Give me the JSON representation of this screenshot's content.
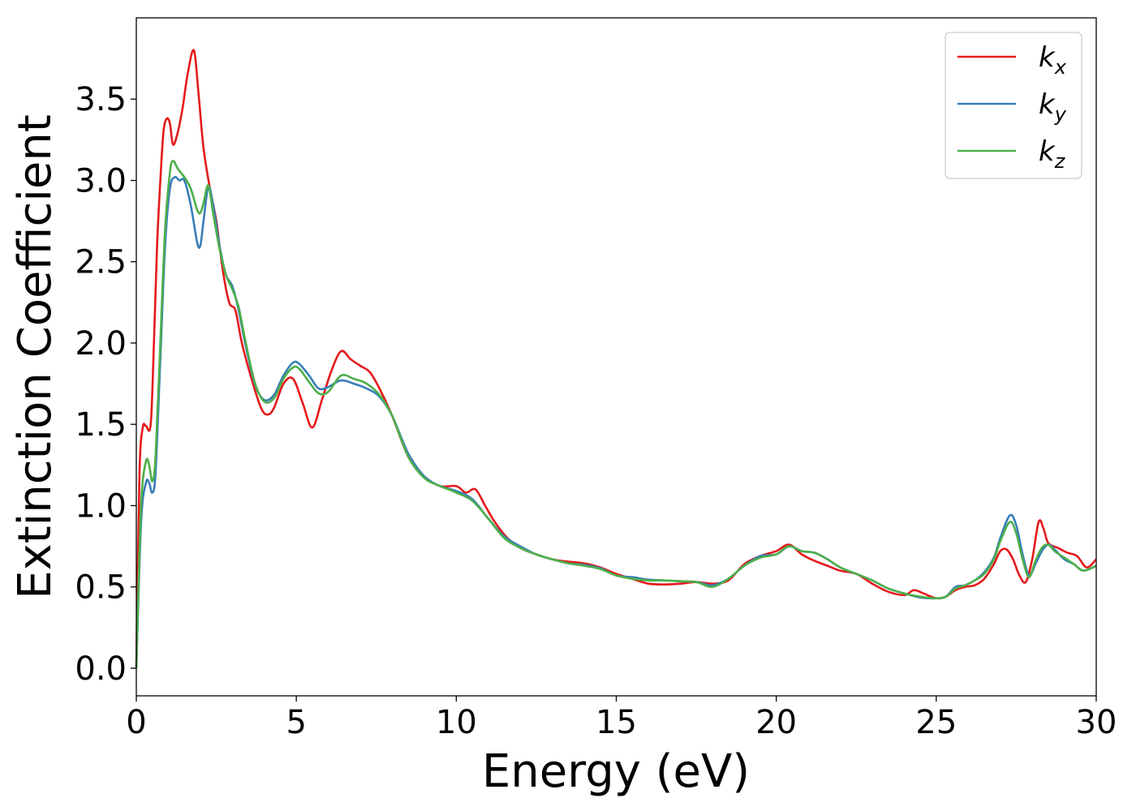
{
  "chart_data": {
    "type": "line",
    "title": "",
    "xlabel": "Energy (eV)",
    "ylabel": "Extinction Coefficient",
    "xlim": [
      0,
      30
    ],
    "ylim": [
      -0.17,
      4.0
    ],
    "xticks": [
      0,
      5,
      10,
      15,
      20,
      25,
      30
    ],
    "xtick_labels": [
      "0",
      "5",
      "10",
      "15",
      "20",
      "25",
      "30"
    ],
    "yticks": [
      0.0,
      0.5,
      1.0,
      1.5,
      2.0,
      2.5,
      3.0,
      3.5
    ],
    "ytick_labels": [
      "0.0",
      "0.5",
      "1.0",
      "1.5",
      "2.0",
      "2.5",
      "3.0",
      "3.5"
    ],
    "grid": false,
    "legend_position": "top-right",
    "series": [
      {
        "name": "k_x",
        "label_base": "k",
        "label_sub": "x",
        "color": "#e41a1c",
        "x": [
          0,
          0.1,
          0.2,
          0.3,
          0.45,
          0.55,
          0.65,
          0.75,
          0.85,
          0.95,
          1.05,
          1.15,
          1.3,
          1.45,
          1.6,
          1.8,
          1.95,
          2.1,
          2.3,
          2.5,
          2.7,
          2.9,
          3.1,
          3.3,
          3.6,
          3.9,
          4.1,
          4.3,
          4.6,
          4.9,
          5.2,
          5.5,
          5.8,
          6.1,
          6.4,
          6.7,
          7.0,
          7.3,
          7.6,
          8.0,
          8.5,
          9.0,
          9.5,
          10.0,
          10.3,
          10.6,
          10.9,
          11.2,
          11.6,
          12.0,
          12.5,
          13.0,
          13.5,
          14.0,
          14.5,
          15.0,
          15.5,
          16.0,
          16.5,
          17.0,
          17.5,
          18.0,
          18.5,
          19.0,
          19.5,
          20.0,
          20.4,
          20.8,
          21.2,
          21.6,
          22.0,
          22.5,
          23.0,
          23.5,
          24.0,
          24.3,
          24.6,
          25.0,
          25.3,
          25.6,
          25.9,
          26.2,
          26.5,
          26.8,
          27.0,
          27.2,
          27.4,
          27.6,
          27.8,
          28.0,
          28.2,
          28.35,
          28.5,
          28.8,
          29.1,
          29.4,
          29.7,
          30.0
        ],
        "y": [
          0.0,
          1.2,
          1.48,
          1.49,
          1.5,
          2.0,
          2.6,
          3.0,
          3.3,
          3.38,
          3.35,
          3.22,
          3.3,
          3.45,
          3.65,
          3.8,
          3.52,
          3.2,
          2.95,
          2.75,
          2.45,
          2.25,
          2.2,
          2.0,
          1.78,
          1.6,
          1.56,
          1.6,
          1.75,
          1.78,
          1.63,
          1.48,
          1.65,
          1.83,
          1.95,
          1.9,
          1.86,
          1.82,
          1.72,
          1.55,
          1.3,
          1.18,
          1.12,
          1.12,
          1.08,
          1.1,
          1.0,
          0.9,
          0.8,
          0.74,
          0.7,
          0.67,
          0.655,
          0.645,
          0.62,
          0.58,
          0.55,
          0.52,
          0.515,
          0.52,
          0.53,
          0.52,
          0.54,
          0.64,
          0.69,
          0.72,
          0.76,
          0.7,
          0.66,
          0.63,
          0.6,
          0.58,
          0.52,
          0.47,
          0.45,
          0.48,
          0.46,
          0.43,
          0.44,
          0.48,
          0.5,
          0.51,
          0.55,
          0.64,
          0.72,
          0.73,
          0.67,
          0.57,
          0.53,
          0.67,
          0.9,
          0.86,
          0.77,
          0.74,
          0.71,
          0.69,
          0.62,
          0.67
        ]
      },
      {
        "name": "k_y",
        "label_base": "k",
        "label_sub": "y",
        "color": "#377eb8",
        "x": [
          0,
          0.15,
          0.3,
          0.4,
          0.5,
          0.6,
          0.75,
          0.9,
          1.05,
          1.2,
          1.35,
          1.5,
          1.7,
          1.9,
          2.0,
          2.1,
          2.25,
          2.4,
          2.6,
          2.8,
          3.0,
          3.2,
          3.4,
          3.7,
          4.0,
          4.3,
          4.6,
          4.9,
          5.1,
          5.4,
          5.7,
          6.0,
          6.4,
          6.8,
          7.2,
          7.6,
          8.0,
          8.5,
          9.0,
          9.5,
          10.0,
          10.5,
          11.0,
          11.5,
          12.0,
          12.5,
          13.0,
          13.5,
          14.0,
          14.5,
          15.0,
          15.5,
          16.0,
          16.5,
          17.0,
          17.5,
          18.0,
          18.5,
          19.0,
          19.5,
          20.0,
          20.4,
          20.8,
          21.2,
          21.6,
          22.0,
          22.5,
          23.0,
          23.5,
          24.0,
          24.5,
          25.0,
          25.3,
          25.6,
          25.9,
          26.2,
          26.5,
          26.8,
          27.0,
          27.3,
          27.5,
          27.7,
          27.9,
          28.1,
          28.3,
          28.5,
          28.7,
          29.0,
          29.3,
          29.6,
          30.0
        ],
        "y": [
          0.0,
          0.9,
          1.14,
          1.14,
          1.08,
          1.2,
          1.9,
          2.6,
          2.95,
          3.02,
          3.0,
          3.0,
          2.85,
          2.62,
          2.6,
          2.75,
          2.96,
          2.85,
          2.6,
          2.42,
          2.35,
          2.2,
          2.0,
          1.75,
          1.65,
          1.68,
          1.8,
          1.88,
          1.87,
          1.8,
          1.72,
          1.73,
          1.77,
          1.75,
          1.72,
          1.67,
          1.55,
          1.32,
          1.18,
          1.12,
          1.09,
          1.04,
          0.92,
          0.81,
          0.75,
          0.7,
          0.67,
          0.645,
          0.635,
          0.615,
          0.57,
          0.56,
          0.545,
          0.54,
          0.535,
          0.53,
          0.51,
          0.55,
          0.63,
          0.69,
          0.7,
          0.75,
          0.72,
          0.71,
          0.67,
          0.62,
          0.58,
          0.54,
          0.49,
          0.46,
          0.435,
          0.43,
          0.44,
          0.5,
          0.51,
          0.54,
          0.59,
          0.68,
          0.8,
          0.94,
          0.88,
          0.7,
          0.57,
          0.64,
          0.72,
          0.76,
          0.73,
          0.67,
          0.64,
          0.6,
          0.63
        ]
      },
      {
        "name": "k_z",
        "label_base": "k",
        "label_sub": "z",
        "color": "#4daf4a",
        "x": [
          0,
          0.15,
          0.3,
          0.4,
          0.5,
          0.6,
          0.75,
          0.9,
          1.05,
          1.15,
          1.3,
          1.5,
          1.7,
          1.9,
          2.0,
          2.1,
          2.25,
          2.4,
          2.6,
          2.8,
          3.0,
          3.2,
          3.4,
          3.7,
          4.0,
          4.3,
          4.6,
          4.9,
          5.1,
          5.4,
          5.7,
          6.0,
          6.4,
          6.8,
          7.2,
          7.6,
          8.0,
          8.5,
          9.0,
          9.5,
          10.0,
          10.5,
          11.0,
          11.5,
          12.0,
          12.5,
          13.0,
          13.5,
          14.0,
          14.5,
          15.0,
          15.5,
          16.0,
          16.5,
          17.0,
          17.5,
          18.0,
          18.5,
          19.0,
          19.5,
          20.0,
          20.4,
          20.8,
          21.2,
          21.6,
          22.0,
          22.5,
          23.0,
          23.5,
          24.0,
          24.5,
          25.0,
          25.3,
          25.6,
          25.9,
          26.2,
          26.5,
          26.8,
          27.0,
          27.3,
          27.5,
          27.7,
          27.9,
          28.1,
          28.3,
          28.5,
          28.7,
          29.0,
          29.3,
          29.6,
          30.0
        ],
        "y": [
          0.0,
          1.0,
          1.27,
          1.25,
          1.15,
          1.3,
          2.0,
          2.7,
          3.05,
          3.12,
          3.07,
          3.02,
          2.95,
          2.82,
          2.8,
          2.86,
          2.97,
          2.8,
          2.58,
          2.42,
          2.33,
          2.22,
          2.02,
          1.76,
          1.64,
          1.66,
          1.78,
          1.85,
          1.84,
          1.76,
          1.69,
          1.7,
          1.8,
          1.78,
          1.75,
          1.68,
          1.55,
          1.3,
          1.17,
          1.12,
          1.08,
          1.03,
          0.92,
          0.8,
          0.74,
          0.7,
          0.67,
          0.645,
          0.63,
          0.61,
          0.57,
          0.55,
          0.54,
          0.54,
          0.535,
          0.53,
          0.5,
          0.55,
          0.63,
          0.68,
          0.7,
          0.75,
          0.72,
          0.71,
          0.67,
          0.62,
          0.58,
          0.54,
          0.49,
          0.46,
          0.44,
          0.43,
          0.44,
          0.49,
          0.51,
          0.54,
          0.58,
          0.67,
          0.78,
          0.9,
          0.83,
          0.67,
          0.56,
          0.66,
          0.74,
          0.76,
          0.72,
          0.68,
          0.64,
          0.6,
          0.63
        ]
      }
    ]
  }
}
